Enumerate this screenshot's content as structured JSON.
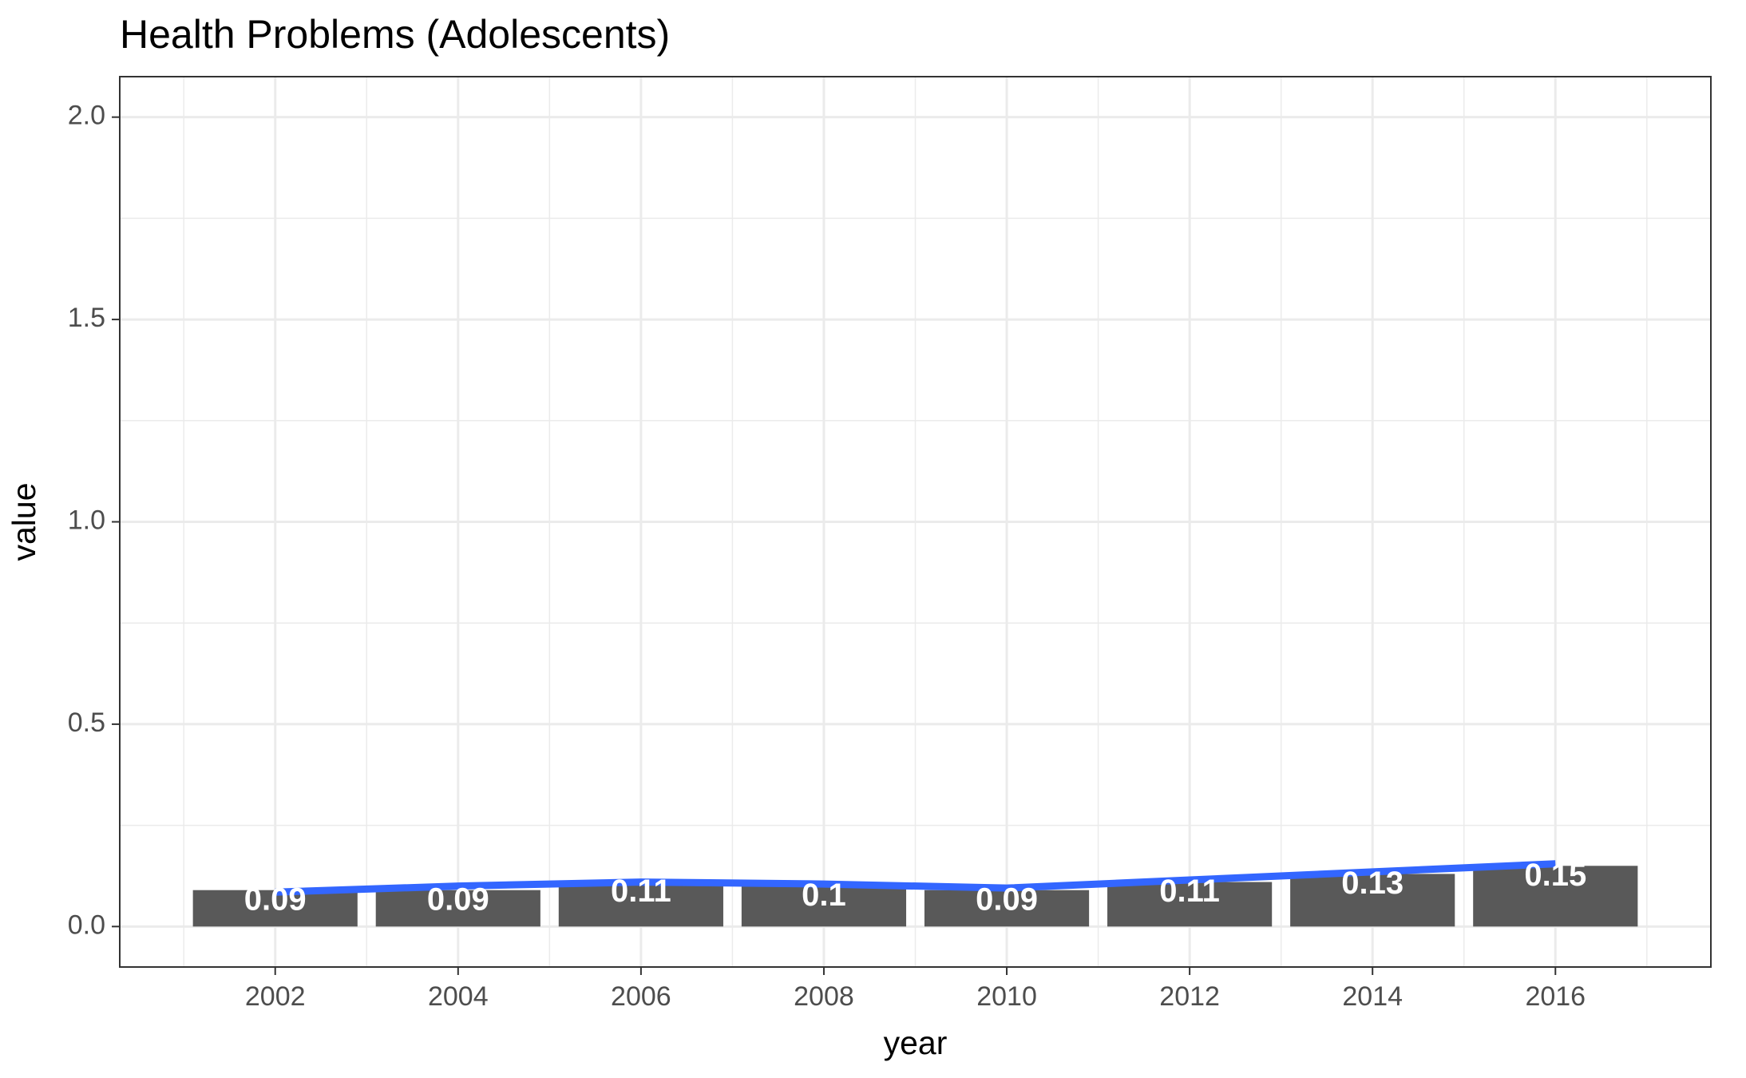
{
  "chart_data": {
    "type": "bar",
    "title": "Health Problems (Adolescents)",
    "xlabel": "year",
    "ylabel": "value",
    "x": [
      2002,
      2004,
      2006,
      2008,
      2010,
      2012,
      2014,
      2016
    ],
    "values": [
      0.09,
      0.09,
      0.11,
      0.1,
      0.09,
      0.11,
      0.13,
      0.15
    ],
    "value_labels": [
      "0.09",
      "0.09",
      "0.11",
      "0.1",
      "0.09",
      "0.11",
      "0.13",
      "0.15"
    ],
    "trend_line": [
      0.085,
      0.1,
      0.11,
      0.105,
      0.095,
      0.115,
      0.135,
      0.155
    ],
    "x_ticks": [
      2002,
      2004,
      2006,
      2008,
      2010,
      2012,
      2014,
      2016
    ],
    "y_ticks": [
      "0.0",
      "0.5",
      "1.0",
      "1.5",
      "2.0"
    ],
    "y_tick_values": [
      0,
      0.5,
      1.0,
      1.5,
      2.0
    ],
    "ylim": [
      -0.1,
      2.1
    ],
    "xlim": [
      2000.3,
      2017.7
    ],
    "grid": true,
    "colors": {
      "bar": "#595959",
      "line": "#3366ff",
      "grid": "#ebebeb",
      "panel_border": "#333333"
    }
  }
}
